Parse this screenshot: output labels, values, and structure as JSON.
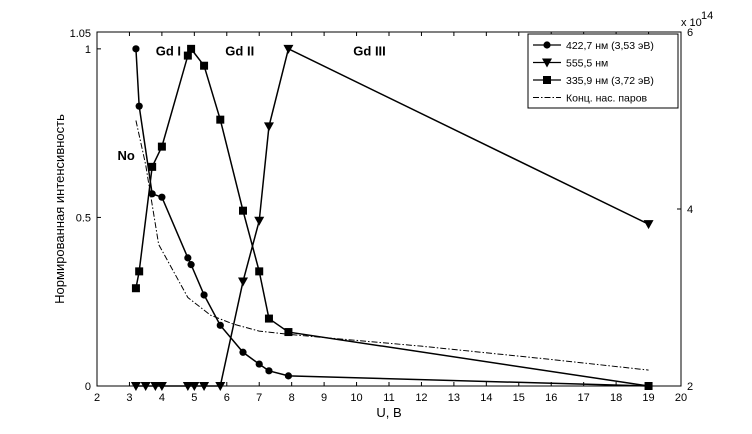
{
  "chart_data": {
    "type": "line",
    "xlabel": "U, В",
    "ylabel": "Нормированная интенсивность",
    "xlim": [
      2,
      20
    ],
    "ylim": [
      0,
      1.05
    ],
    "y2lim": [
      2,
      6
    ],
    "x_ticks": [
      2,
      3,
      4,
      5,
      6,
      7,
      8,
      9,
      10,
      11,
      12,
      13,
      14,
      15,
      16,
      17,
      18,
      19,
      20
    ],
    "y_ticks": [
      0,
      0.5,
      1
    ],
    "y_tick_labels": [
      "0",
      "0.5",
      "1"
    ],
    "y_top_label": "1.05",
    "y2_ticks": [
      2,
      4,
      6
    ],
    "y2_multiplier": "x 10",
    "y2_exponent": "14",
    "legend_position": "top-right",
    "annotations": [
      {
        "text": "Gd I",
        "x": 4.2,
        "y": 0.98
      },
      {
        "text": "Gd II",
        "x": 6.4,
        "y": 0.98
      },
      {
        "text": "Gd III",
        "x": 10.4,
        "y": 0.98
      },
      {
        "text": "No",
        "x": 2.9,
        "y": 0.67
      }
    ],
    "series": [
      {
        "name": "422,7 нм (3,53 эВ)",
        "marker": "circle",
        "color": "#000000",
        "x": [
          3.2,
          3.3,
          3.7,
          4.0,
          4.8,
          4.9,
          5.3,
          5.8,
          6.5,
          7.0,
          7.3,
          7.9,
          19.0
        ],
        "y": [
          1.0,
          0.83,
          0.57,
          0.56,
          0.38,
          0.36,
          0.27,
          0.18,
          0.1,
          0.065,
          0.045,
          0.03,
          0.0
        ]
      },
      {
        "name": "555,5 нм",
        "marker": "triangle-down",
        "color": "#000000",
        "x": [
          3.2,
          3.5,
          3.8,
          4.0,
          4.8,
          5.0,
          5.3,
          5.8,
          6.5,
          7.0,
          7.3,
          7.9,
          19.0
        ],
        "y": [
          0.0,
          0.0,
          0.0,
          0.0,
          0.0,
          0.0,
          0.0,
          0.0,
          0.31,
          0.49,
          0.77,
          1.0,
          0.48
        ]
      },
      {
        "name": "335,9 нм (3,72 эВ)",
        "marker": "square",
        "color": "#000000",
        "x": [
          3.2,
          3.3,
          3.7,
          4.0,
          4.8,
          4.9,
          5.3,
          5.8,
          6.5,
          7.0,
          7.3,
          7.9,
          19.0
        ],
        "y": [
          0.29,
          0.34,
          0.65,
          0.71,
          0.98,
          1.0,
          0.95,
          0.79,
          0.52,
          0.34,
          0.2,
          0.16,
          0.0
        ]
      },
      {
        "name": "Конц. нас. паров",
        "marker": "none",
        "line": "dash-dot",
        "color": "#000000",
        "axis": "y2",
        "x": [
          3.2,
          3.5,
          3.9,
          4.8,
          5.5,
          6.2,
          7.0,
          8.0,
          12.0,
          16.0,
          19.0
        ],
        "y": [
          5.0,
          4.5,
          3.6,
          3.0,
          2.8,
          2.7,
          2.62,
          2.58,
          2.45,
          2.3,
          2.18
        ]
      }
    ]
  }
}
